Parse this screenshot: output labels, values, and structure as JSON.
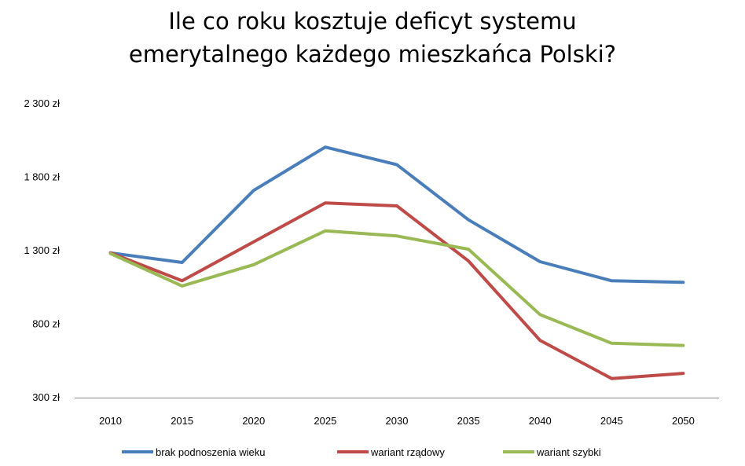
{
  "chart_data": {
    "type": "line",
    "title_lines": [
      "Ile co roku kosztuje deficyt systemu",
      "emerytalnego każdego mieszkańca Polski?"
    ],
    "xlabel": "",
    "ylabel": "",
    "x": [
      "2010",
      "2015",
      "2020",
      "2025",
      "2030",
      "2035",
      "2040",
      "2045",
      "2050"
    ],
    "y_ticks": [
      300,
      800,
      1300,
      1800,
      2300
    ],
    "y_tick_labels": [
      "300 zł",
      "800 zł",
      "1 300 zł",
      "1 800 zł",
      "2 300 zł"
    ],
    "ylim": [
      300,
      2300
    ],
    "grid": false,
    "legend_position": "bottom",
    "series": [
      {
        "name": "brak podnoszenia wieku",
        "color": "#4a7ebb",
        "values": [
          1285,
          1220,
          1710,
          2005,
          1885,
          1510,
          1225,
          1095,
          1085
        ]
      },
      {
        "name": "wariant rządowy",
        "color": "#be4b48",
        "values": [
          1285,
          1095,
          1360,
          1625,
          1605,
          1230,
          690,
          430,
          465
        ]
      },
      {
        "name": "wariant szybki",
        "color": "#98b954",
        "values": [
          1280,
          1060,
          1205,
          1435,
          1400,
          1310,
          865,
          670,
          655
        ]
      }
    ]
  }
}
